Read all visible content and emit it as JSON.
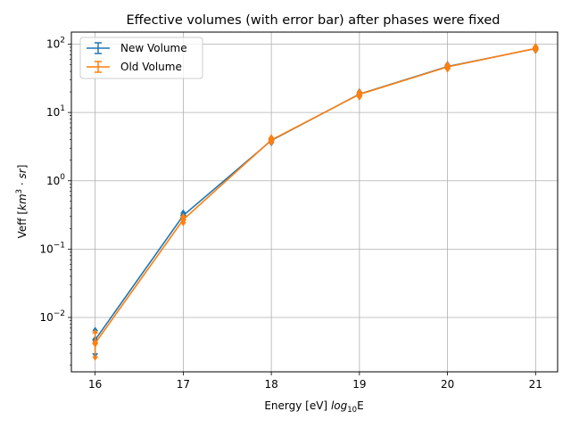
{
  "chart_data": {
    "type": "line",
    "title": "Effective volumes (with error bar) after phases were fixed",
    "xlabel": "Energy [eV] log10E",
    "ylabel": "Veff [km3·sr]",
    "x_ticks": [
      "16",
      "17",
      "18",
      "19",
      "20",
      "21"
    ],
    "y_scale": "log",
    "y_ticks": [
      "10-2",
      "10-1",
      "100",
      "101",
      "102"
    ],
    "xlim": [
      15.73,
      21.25
    ],
    "ylim": [
      0.0016,
      150
    ],
    "grid": true,
    "legend_position": "top-left",
    "x": [
      16,
      17,
      18,
      19,
      20,
      21
    ],
    "series": [
      {
        "name": "New Volume",
        "color": "#1f77b4",
        "values": [
          0.0047,
          0.31,
          3.9,
          18.6,
          47.0,
          86.0
        ],
        "err_low": [
          0.003,
          0.29,
          3.7,
          17.6,
          45.0,
          83.0
        ],
        "err_high": [
          0.0063,
          0.33,
          4.1,
          19.6,
          49.0,
          89.0
        ]
      },
      {
        "name": "Old Volume",
        "color": "#ff7f0e",
        "values": [
          0.0042,
          0.27,
          3.95,
          18.4,
          46.5,
          86.5
        ],
        "err_low": [
          0.0027,
          0.25,
          3.75,
          17.4,
          44.5,
          83.5
        ],
        "err_high": [
          0.0058,
          0.29,
          4.15,
          19.4,
          48.5,
          89.5
        ]
      }
    ]
  }
}
